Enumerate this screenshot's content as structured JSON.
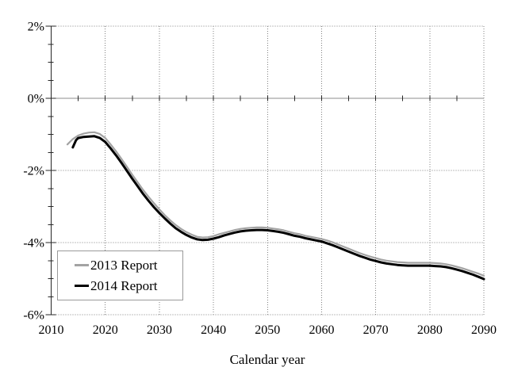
{
  "figure": {
    "background": "#ffffff",
    "grid_color": "#808080",
    "axis_color": "#262626",
    "text_color": "#000000"
  },
  "chart_data": {
    "type": "line",
    "title": "",
    "xlabel": "Calendar year",
    "ylabel": "",
    "xlim": [
      2010,
      2090
    ],
    "ylim": [
      -6,
      2
    ],
    "x_major_ticks": [
      2010,
      2020,
      2030,
      2040,
      2050,
      2060,
      2070,
      2080,
      2090
    ],
    "x_tick_labels": [
      "2010",
      "2020",
      "2030",
      "2040",
      "2050",
      "2060",
      "2070",
      "2080",
      "2090"
    ],
    "x_minor_tick_step": 5,
    "y_major_ticks": [
      2,
      0,
      -2,
      -4,
      -6
    ],
    "y_tick_labels": [
      "2%",
      "0%",
      "-2%",
      "-4%",
      "-6%"
    ],
    "y_minor_tick_step": 0.5,
    "grid": {
      "style": "dotted",
      "horizontal_at": [
        2,
        -2,
        -4,
        -6
      ],
      "vertical_at": [
        2020,
        2030,
        2040,
        2050,
        2060,
        2070,
        2080,
        2090
      ],
      "zero_axis_at": 0
    },
    "legend": {
      "position": "inside-bottom-left",
      "entries": [
        "2013 Report",
        "2014 Report"
      ]
    },
    "series": [
      {
        "name": "2013 Report",
        "color": "#a3a3a3",
        "line_width": 2.2,
        "points": [
          [
            2013,
            -1.28
          ],
          [
            2014,
            -1.13
          ],
          [
            2015,
            -1.03
          ],
          [
            2016,
            -0.98
          ],
          [
            2017,
            -0.95
          ],
          [
            2018,
            -0.94
          ],
          [
            2019,
            -0.99
          ],
          [
            2020,
            -1.1
          ],
          [
            2021,
            -1.28
          ],
          [
            2022,
            -1.47
          ],
          [
            2023,
            -1.68
          ],
          [
            2024,
            -1.9
          ],
          [
            2025,
            -2.12
          ],
          [
            2026,
            -2.33
          ],
          [
            2027,
            -2.54
          ],
          [
            2028,
            -2.73
          ],
          [
            2029,
            -2.91
          ],
          [
            2030,
            -3.08
          ],
          [
            2031,
            -3.24
          ],
          [
            2032,
            -3.38
          ],
          [
            2033,
            -3.51
          ],
          [
            2034,
            -3.62
          ],
          [
            2035,
            -3.71
          ],
          [
            2036,
            -3.78
          ],
          [
            2037,
            -3.84
          ],
          [
            2038,
            -3.86
          ],
          [
            2039,
            -3.85
          ],
          [
            2040,
            -3.82
          ],
          [
            2041,
            -3.77
          ],
          [
            2042,
            -3.73
          ],
          [
            2043,
            -3.69
          ],
          [
            2044,
            -3.65
          ],
          [
            2045,
            -3.62
          ],
          [
            2046,
            -3.6
          ],
          [
            2047,
            -3.59
          ],
          [
            2048,
            -3.58
          ],
          [
            2049,
            -3.58
          ],
          [
            2050,
            -3.59
          ],
          [
            2051,
            -3.61
          ],
          [
            2052,
            -3.63
          ],
          [
            2053,
            -3.66
          ],
          [
            2054,
            -3.7
          ],
          [
            2055,
            -3.74
          ],
          [
            2056,
            -3.77
          ],
          [
            2057,
            -3.81
          ],
          [
            2058,
            -3.84
          ],
          [
            2059,
            -3.87
          ],
          [
            2060,
            -3.9
          ],
          [
            2061,
            -3.94
          ],
          [
            2062,
            -3.99
          ],
          [
            2063,
            -4.05
          ],
          [
            2064,
            -4.11
          ],
          [
            2065,
            -4.17
          ],
          [
            2066,
            -4.23
          ],
          [
            2067,
            -4.29
          ],
          [
            2068,
            -4.34
          ],
          [
            2069,
            -4.39
          ],
          [
            2070,
            -4.43
          ],
          [
            2071,
            -4.47
          ],
          [
            2072,
            -4.5
          ],
          [
            2073,
            -4.52
          ],
          [
            2074,
            -4.54
          ],
          [
            2075,
            -4.55
          ],
          [
            2076,
            -4.56
          ],
          [
            2077,
            -4.56
          ],
          [
            2078,
            -4.56
          ],
          [
            2079,
            -4.56
          ],
          [
            2080,
            -4.56
          ],
          [
            2081,
            -4.57
          ],
          [
            2082,
            -4.58
          ],
          [
            2083,
            -4.6
          ],
          [
            2084,
            -4.63
          ],
          [
            2085,
            -4.67
          ],
          [
            2086,
            -4.71
          ],
          [
            2087,
            -4.76
          ],
          [
            2088,
            -4.81
          ],
          [
            2089,
            -4.86
          ],
          [
            2090,
            -4.92
          ]
        ]
      },
      {
        "name": "2014 Report",
        "color": "#000000",
        "line_width": 3,
        "points": [
          [
            2014,
            -1.36
          ],
          [
            2014.6,
            -1.16
          ],
          [
            2015,
            -1.1
          ],
          [
            2016,
            -1.07
          ],
          [
            2017,
            -1.06
          ],
          [
            2018,
            -1.05
          ],
          [
            2019,
            -1.1
          ],
          [
            2020,
            -1.21
          ],
          [
            2021,
            -1.39
          ],
          [
            2022,
            -1.58
          ],
          [
            2023,
            -1.79
          ],
          [
            2024,
            -2.01
          ],
          [
            2025,
            -2.23
          ],
          [
            2026,
            -2.44
          ],
          [
            2027,
            -2.65
          ],
          [
            2028,
            -2.84
          ],
          [
            2029,
            -3.02
          ],
          [
            2030,
            -3.18
          ],
          [
            2031,
            -3.33
          ],
          [
            2032,
            -3.47
          ],
          [
            2033,
            -3.6
          ],
          [
            2034,
            -3.7
          ],
          [
            2035,
            -3.79
          ],
          [
            2036,
            -3.86
          ],
          [
            2037,
            -3.91
          ],
          [
            2038,
            -3.93
          ],
          [
            2039,
            -3.92
          ],
          [
            2040,
            -3.89
          ],
          [
            2041,
            -3.85
          ],
          [
            2042,
            -3.8
          ],
          [
            2043,
            -3.76
          ],
          [
            2044,
            -3.72
          ],
          [
            2045,
            -3.69
          ],
          [
            2046,
            -3.67
          ],
          [
            2047,
            -3.66
          ],
          [
            2048,
            -3.65
          ],
          [
            2049,
            -3.65
          ],
          [
            2050,
            -3.66
          ],
          [
            2051,
            -3.68
          ],
          [
            2052,
            -3.7
          ],
          [
            2053,
            -3.73
          ],
          [
            2054,
            -3.77
          ],
          [
            2055,
            -3.81
          ],
          [
            2056,
            -3.84
          ],
          [
            2057,
            -3.88
          ],
          [
            2058,
            -3.91
          ],
          [
            2059,
            -3.94
          ],
          [
            2060,
            -3.97
          ],
          [
            2061,
            -4.02
          ],
          [
            2062,
            -4.07
          ],
          [
            2063,
            -4.13
          ],
          [
            2064,
            -4.19
          ],
          [
            2065,
            -4.25
          ],
          [
            2066,
            -4.31
          ],
          [
            2067,
            -4.37
          ],
          [
            2068,
            -4.42
          ],
          [
            2069,
            -4.47
          ],
          [
            2070,
            -4.51
          ],
          [
            2071,
            -4.55
          ],
          [
            2072,
            -4.58
          ],
          [
            2073,
            -4.6
          ],
          [
            2074,
            -4.62
          ],
          [
            2075,
            -4.63
          ],
          [
            2076,
            -4.64
          ],
          [
            2077,
            -4.64
          ],
          [
            2078,
            -4.64
          ],
          [
            2079,
            -4.64
          ],
          [
            2080,
            -4.64
          ],
          [
            2081,
            -4.65
          ],
          [
            2082,
            -4.66
          ],
          [
            2083,
            -4.68
          ],
          [
            2084,
            -4.71
          ],
          [
            2085,
            -4.75
          ],
          [
            2086,
            -4.79
          ],
          [
            2087,
            -4.84
          ],
          [
            2088,
            -4.89
          ],
          [
            2089,
            -4.95
          ],
          [
            2090,
            -5.01
          ]
        ]
      }
    ]
  }
}
